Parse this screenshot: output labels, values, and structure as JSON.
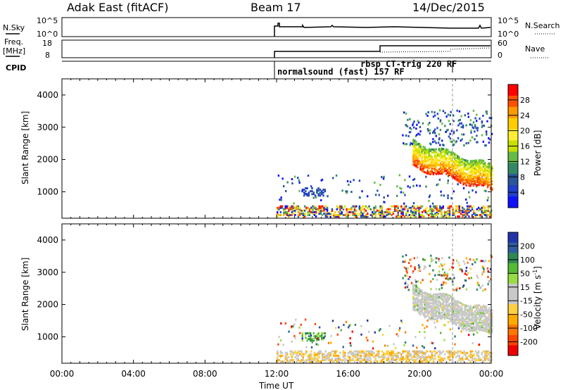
{
  "header": {
    "title": "Adak East (fitACF)",
    "beam": "Beam 17",
    "date": "14/Dec/2015"
  },
  "top_panels": {
    "nsky_label": "N.Sky",
    "nsky_ticks": [
      "10^5",
      "10^0"
    ],
    "nsearch_label": "N.Search",
    "nsearch_ticks": [
      "10^5",
      "10^0"
    ],
    "freq_label": "Freq.",
    "freq_unit": "[MHz]",
    "freq_ticks": [
      "18",
      "8"
    ],
    "nave_label": "Nave",
    "nave_ticks": [
      "60",
      "0"
    ],
    "cpid_label": "CPID",
    "cpid_programs": [
      "normalsound (fast) 157 RF",
      "rbsp CT-trig 220 RF"
    ]
  },
  "power_scale": {
    "title": "Power [dB]",
    "ticks": [
      "28",
      "24",
      "20",
      "16",
      "12",
      "8",
      "4"
    ],
    "colors": [
      "#ff0000",
      "#ff5000",
      "#ff9900",
      "#ffcc00",
      "#ffee33",
      "#c8e100",
      "#66bb44",
      "#338866",
      "#2a5599",
      "#1f3fcc",
      "#1010ff"
    ]
  },
  "velocity_scale": {
    "title": "Velocity [m s^-1]",
    "ticks": [
      "200",
      "100",
      "50",
      "15",
      "-15",
      "-50",
      "-100",
      "-200"
    ],
    "colors": [
      "#2233aa",
      "#2f5ca0",
      "#2e8855",
      "#55bb33",
      "#99dd44",
      "#c8c8c8",
      "#c8c8c8",
      "#ffd040",
      "#ffaa00",
      "#ff7700",
      "#ff4400",
      "#ee0000"
    ]
  },
  "chart_data": [
    {
      "type": "heatmap",
      "quantity": "Power",
      "xlabel": "Time UT",
      "ylabel": "Slant Range [km]",
      "x_ticks": [
        "00:00",
        "04:00",
        "08:00",
        "12:00",
        "16:00",
        "20:00",
        "00:00"
      ],
      "y_ticks": [
        "1000",
        "2000",
        "3000",
        "4000"
      ],
      "xlim_hours": [
        0,
        24
      ],
      "ylim_km": [
        180,
        4500
      ],
      "colorbar": {
        "label": "Power [dB]",
        "ticks": [
          28,
          24,
          20,
          16,
          12,
          8,
          4
        ]
      },
      "data_start_hour": 12,
      "marker_hour": 21.9
    },
    {
      "type": "heatmap",
      "quantity": "Velocity",
      "xlabel": "Time UT",
      "ylabel": "Slant Range [km]",
      "x_ticks": [
        "00:00",
        "04:00",
        "08:00",
        "12:00",
        "16:00",
        "20:00",
        "00:00"
      ],
      "y_ticks": [
        "1000",
        "2000",
        "3000",
        "4000"
      ],
      "xlim_hours": [
        0,
        24
      ],
      "ylim_km": [
        180,
        4500
      ],
      "colorbar": {
        "label": "Velocity [m s^-1]",
        "ticks": [
          200,
          100,
          50,
          15,
          -15,
          -50,
          -100,
          -200
        ]
      },
      "data_start_hour": 12,
      "marker_hour": 21.9
    }
  ]
}
